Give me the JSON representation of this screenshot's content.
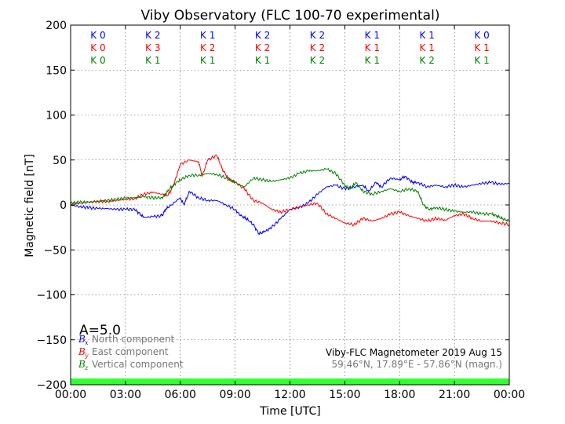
{
  "chart_data": {
    "type": "line",
    "title": "Viby Observatory (FLC 100-70 experimental)",
    "xlabel": "Time [UTC]",
    "ylabel": "Magnetic field [nT]",
    "xlim": [
      0,
      24
    ],
    "ylim": [
      -200,
      200
    ],
    "x_ticks": [
      "00:00",
      "03:00",
      "06:00",
      "09:00",
      "12:00",
      "15:00",
      "18:00",
      "21:00",
      "00:00"
    ],
    "y_ticks": [
      "200",
      "150",
      "100",
      "50",
      "0",
      "−50",
      "−100",
      "−150",
      "−200"
    ],
    "grid": true,
    "series": [
      {
        "name": "North component",
        "symbol": "B",
        "subscript": "x",
        "color": "#0000ff",
        "x": [
          0,
          0.5,
          1,
          1.5,
          2,
          2.5,
          3,
          3.5,
          3.8,
          4,
          4.5,
          5,
          5.2,
          5.5,
          6,
          6.2,
          6.5,
          7,
          7.5,
          8,
          8.5,
          9,
          9.3,
          9.6,
          10,
          10.3,
          10.6,
          11,
          11.5,
          12,
          12.5,
          13,
          13.5,
          14,
          14.5,
          15,
          15.5,
          16,
          16.3,
          16.7,
          17,
          17.5,
          18,
          18.3,
          18.7,
          19,
          19.5,
          20,
          20.5,
          21,
          21.5,
          22,
          22.5,
          23,
          23.5,
          24
        ],
        "y": [
          0,
          -2,
          -3,
          -4,
          -4,
          -5,
          -5,
          -5,
          -10,
          -14,
          -13,
          -12,
          -5,
          0,
          8,
          0,
          15,
          8,
          5,
          5,
          0,
          -5,
          -12,
          -15,
          -22,
          -32,
          -30,
          -25,
          -15,
          -5,
          -3,
          2,
          12,
          20,
          22,
          18,
          20,
          22,
          15,
          25,
          20,
          30,
          28,
          32,
          25,
          25,
          20,
          22,
          20,
          22,
          20,
          22,
          24,
          25,
          23,
          24
        ]
      },
      {
        "name": "East component",
        "symbol": "B",
        "subscript": "y",
        "color": "#ff0000",
        "x": [
          0,
          0.5,
          1,
          1.5,
          2,
          2.5,
          3,
          3.5,
          4,
          4.5,
          5,
          5.3,
          5.6,
          6,
          6.5,
          7,
          7.2,
          7.5,
          8,
          8.3,
          8.6,
          9,
          9.5,
          10,
          10.5,
          11,
          11.5,
          12,
          12.5,
          13,
          13.5,
          14,
          14.5,
          15,
          15.5,
          16,
          16.5,
          17,
          17.5,
          18,
          18.5,
          19,
          19.5,
          20,
          20.5,
          21,
          21.5,
          22,
          22.5,
          23,
          23.5,
          24
        ],
        "y": [
          1,
          2,
          3,
          4,
          4,
          5,
          6,
          7,
          12,
          14,
          12,
          10,
          20,
          45,
          50,
          48,
          32,
          50,
          55,
          40,
          30,
          25,
          18,
          5,
          2,
          -5,
          -8,
          -5,
          -2,
          0,
          2,
          -10,
          -15,
          -20,
          -22,
          -15,
          -18,
          -15,
          -10,
          -8,
          -12,
          -15,
          -18,
          -15,
          -17,
          -12,
          -10,
          -15,
          -18,
          -18,
          -20,
          -22
        ]
      },
      {
        "name": "Vertical component",
        "symbol": "B",
        "subscript": "z",
        "color": "#008000",
        "x": [
          0,
          0.5,
          1,
          1.5,
          2,
          2.5,
          3,
          3.5,
          4,
          4.5,
          5,
          5.3,
          5.6,
          6,
          6.5,
          7,
          7.5,
          8,
          8.5,
          9,
          9.5,
          10,
          10.5,
          11,
          11.5,
          12,
          12.5,
          13,
          13.5,
          14,
          14.5,
          15,
          15.3,
          15.6,
          16,
          16.5,
          17,
          17.5,
          18,
          18.5,
          19,
          19.3,
          19.6,
          20,
          20.5,
          21,
          21.5,
          22,
          22.5,
          23,
          23.3,
          23.6,
          24
        ],
        "y": [
          2,
          3,
          3,
          4,
          5,
          6,
          8,
          8,
          9,
          8,
          8,
          15,
          22,
          28,
          33,
          33,
          35,
          34,
          30,
          25,
          20,
          30,
          28,
          26,
          28,
          30,
          35,
          38,
          38,
          40,
          35,
          22,
          18,
          25,
          15,
          12,
          15,
          18,
          15,
          18,
          15,
          0,
          -5,
          -3,
          -5,
          -7,
          -8,
          -8,
          -10,
          -10,
          -12,
          -15,
          -18
        ]
      }
    ],
    "k_indices": {
      "x": [
        0,
        1,
        1,
        1,
        2,
        2,
        3,
        3
      ],
      "rows": [
        {
          "color": "#0000ff",
          "values": [
            "K 0",
            "K 2",
            "K 1",
            "K 2",
            "K 2",
            "K 1",
            "K 1",
            "K 0"
          ]
        },
        {
          "color": "#ff0000",
          "values": [
            "K 0",
            "K 3",
            "K 2",
            "K 2",
            "K 2",
            "K 1",
            "K 1",
            "K 1"
          ]
        },
        {
          "color": "#008000",
          "values": [
            "K 0",
            "K 1",
            "K 1",
            "K 1",
            "K 2",
            "K 1",
            "K 2",
            "K 1"
          ]
        }
      ]
    },
    "a_index": "A=5.0",
    "status_bar_color": "#33ff33",
    "info_line1": "Viby-FLC Magnetometer 2019 Aug 15",
    "info_line2": "59.46°N, 17.89°E - 57.86°N (magn.)"
  }
}
